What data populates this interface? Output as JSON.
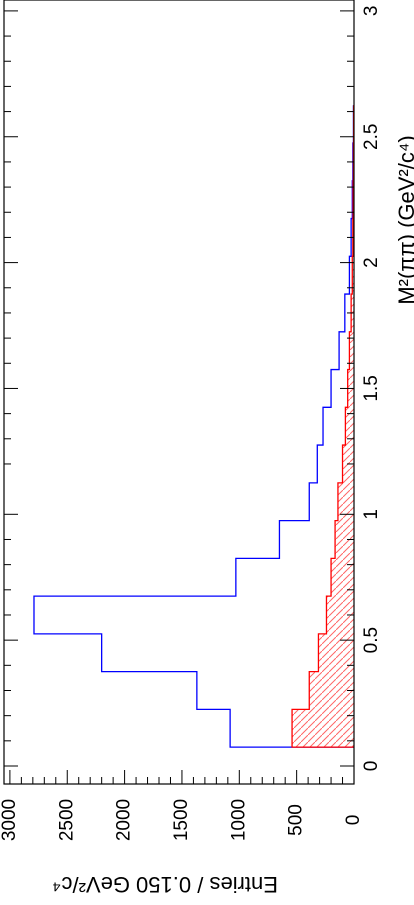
{
  "chart_data": {
    "type": "histogram",
    "orientation": "rotated-90",
    "title": "",
    "xlabel": "M²(ππ) (GeV²/c⁴)",
    "ylabel": "Entries / 0.150 GeV²/c⁴",
    "xlim": [
      -0.05,
      3.05
    ],
    "ylim": [
      0,
      3100
    ],
    "x_ticks": [
      "0",
      "0.5",
      "1",
      "1.5",
      "2",
      "2.5",
      "3"
    ],
    "y_ticks": [
      "0",
      "500",
      "1000",
      "1500",
      "2000",
      "2500",
      "3000"
    ],
    "bin_edges": [
      0.075,
      0.225,
      0.375,
      0.525,
      0.675,
      0.825,
      0.975,
      1.125,
      1.275,
      1.425,
      1.575,
      1.725,
      1.875,
      2.025,
      2.175,
      2.325,
      2.475,
      2.625
    ],
    "series": [
      {
        "name": "",
        "color": "#0000ff",
        "style": "step",
        "values": [
          1080,
          1370,
          2200,
          2790,
          1030,
          650,
          390,
          320,
          270,
          200,
          130,
          80,
          40,
          25,
          15,
          10,
          5
        ]
      },
      {
        "name": "",
        "color": "#ff0000",
        "style": "step-hatched",
        "values": [
          540,
          390,
          310,
          240,
          200,
          165,
          140,
          100,
          75,
          55,
          40,
          25,
          15,
          10,
          8,
          5,
          3
        ]
      }
    ],
    "grid": false,
    "legend": "none"
  }
}
